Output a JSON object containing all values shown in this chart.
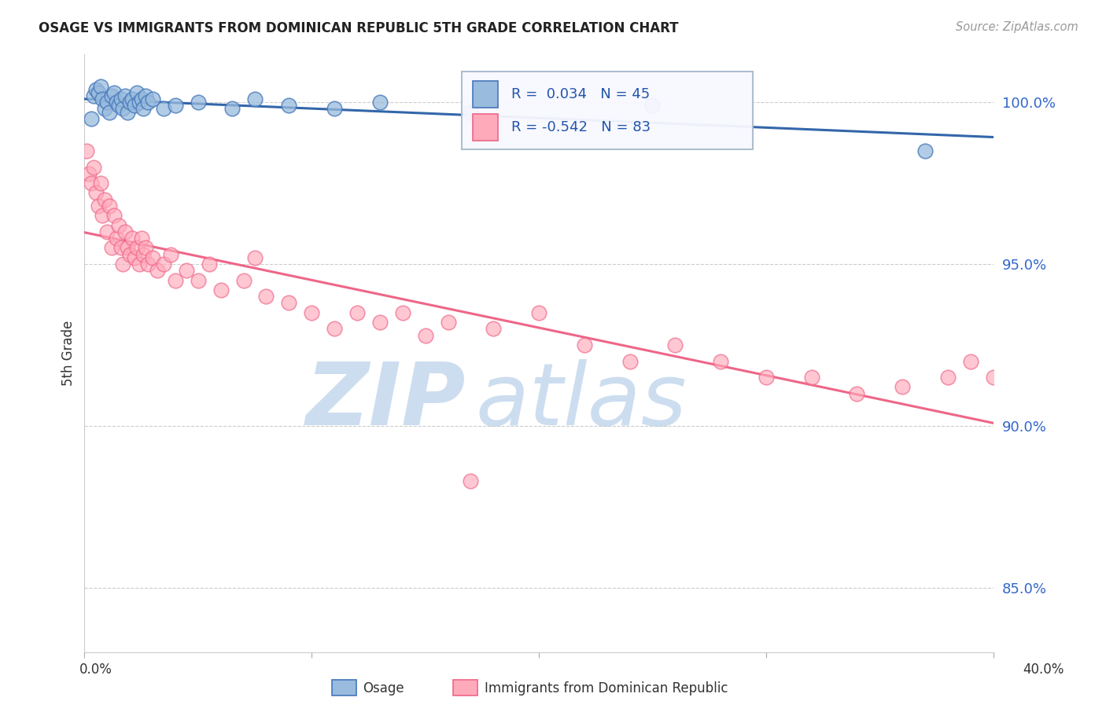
{
  "title": "OSAGE VS IMMIGRANTS FROM DOMINICAN REPUBLIC 5TH GRADE CORRELATION CHART",
  "source": "Source: ZipAtlas.com",
  "ylabel": "5th Grade",
  "xlim": [
    0.0,
    40.0
  ],
  "ylim": [
    83.0,
    101.5
  ],
  "yticks": [
    85.0,
    90.0,
    95.0,
    100.0
  ],
  "ytick_labels": [
    "85.0%",
    "90.0%",
    "95.0%",
    "100.0%"
  ],
  "color_blue_face": "#99BBDD",
  "color_blue_edge": "#4477BB",
  "color_blue_line": "#3366AA",
  "color_pink_face": "#FFAABB",
  "color_pink_edge": "#EE6688",
  "color_pink_line": "#EE6688",
  "watermark_zip": "ZIP",
  "watermark_atlas": "atlas",
  "legend_text1": "R =  0.034   N = 45",
  "legend_text2": "R = -0.542   N = 83",
  "osage_x": [
    0.3,
    0.4,
    0.5,
    0.6,
    0.7,
    0.8,
    0.9,
    1.0,
    1.1,
    1.2,
    1.3,
    1.4,
    1.5,
    1.6,
    1.7,
    1.8,
    1.9,
    2.0,
    2.1,
    2.2,
    2.3,
    2.4,
    2.5,
    2.6,
    2.7,
    2.8,
    3.0,
    3.5,
    4.0,
    5.0,
    6.5,
    7.5,
    9.0,
    11.0,
    13.0,
    17.0,
    25.0,
    37.0
  ],
  "osage_y": [
    99.5,
    100.2,
    100.4,
    100.3,
    100.5,
    100.1,
    99.8,
    100.0,
    99.7,
    100.2,
    100.3,
    100.0,
    99.9,
    100.1,
    99.8,
    100.2,
    99.7,
    100.0,
    100.1,
    99.9,
    100.3,
    100.0,
    100.1,
    99.8,
    100.2,
    100.0,
    100.1,
    99.8,
    99.9,
    100.0,
    99.8,
    100.1,
    99.9,
    99.8,
    100.0,
    99.7,
    99.9,
    98.5
  ],
  "dr_x": [
    0.1,
    0.2,
    0.3,
    0.4,
    0.5,
    0.6,
    0.7,
    0.8,
    0.9,
    1.0,
    1.1,
    1.2,
    1.3,
    1.4,
    1.5,
    1.6,
    1.7,
    1.8,
    1.9,
    2.0,
    2.1,
    2.2,
    2.3,
    2.4,
    2.5,
    2.6,
    2.7,
    2.8,
    3.0,
    3.2,
    3.5,
    3.8,
    4.0,
    4.5,
    5.0,
    5.5,
    6.0,
    7.0,
    7.5,
    8.0,
    9.0,
    10.0,
    11.0,
    12.0,
    13.0,
    14.0,
    15.0,
    16.0,
    17.0,
    18.0,
    20.0,
    22.0,
    24.0,
    26.0,
    28.0,
    30.0,
    32.0,
    34.0,
    36.0,
    38.0,
    39.0,
    40.0
  ],
  "dr_y": [
    98.5,
    97.8,
    97.5,
    98.0,
    97.2,
    96.8,
    97.5,
    96.5,
    97.0,
    96.0,
    96.8,
    95.5,
    96.5,
    95.8,
    96.2,
    95.5,
    95.0,
    96.0,
    95.5,
    95.3,
    95.8,
    95.2,
    95.5,
    95.0,
    95.8,
    95.3,
    95.5,
    95.0,
    95.2,
    94.8,
    95.0,
    95.3,
    94.5,
    94.8,
    94.5,
    95.0,
    94.2,
    94.5,
    95.2,
    94.0,
    93.8,
    93.5,
    93.0,
    93.5,
    93.2,
    93.5,
    92.8,
    93.2,
    88.3,
    93.0,
    93.5,
    92.5,
    92.0,
    92.5,
    92.0,
    91.5,
    91.5,
    91.0,
    91.2,
    91.5,
    92.0,
    91.5
  ]
}
